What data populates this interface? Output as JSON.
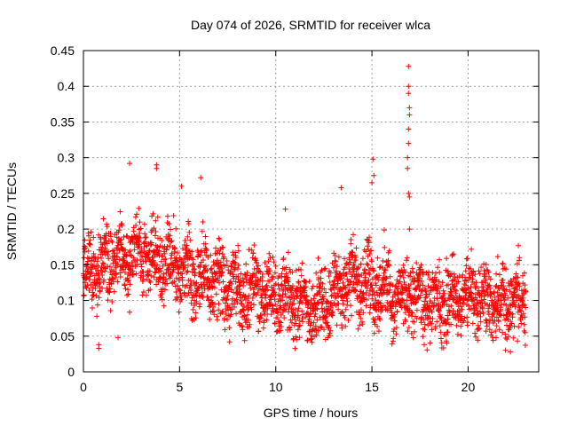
{
  "chart_data": {
    "type": "scatter",
    "title": "Day 074 of 2026, SRMTID for receiver wlca",
    "xlabel": "GPS time / hours",
    "ylabel": "SRMTID / TECUs",
    "xlim": [
      0,
      23.67
    ],
    "ylim": [
      0,
      0.45
    ],
    "x_ticks": [
      0,
      5,
      10,
      15,
      20
    ],
    "y_ticks": [
      0,
      0.05,
      0.1,
      0.15,
      0.2,
      0.25,
      0.3,
      0.35,
      0.4,
      0.45
    ],
    "x_tick_labels": [
      "0",
      "5",
      "10",
      "15",
      "20"
    ],
    "y_tick_labels": [
      "0",
      "0.05",
      "0.1",
      "0.15",
      "0.2",
      "0.25",
      "0.3",
      "0.35",
      "0.4",
      "0.45"
    ],
    "grid": true,
    "marker": "+",
    "marker_color": "#ff0000",
    "data_range": [
      0,
      23
    ],
    "notable_points": [
      {
        "x": 16.9,
        "y": 0.428
      },
      {
        "x": 16.9,
        "y": 0.4
      },
      {
        "x": 16.9,
        "y": 0.39
      },
      {
        "x": 16.95,
        "y": 0.37
      },
      {
        "x": 16.95,
        "y": 0.36
      },
      {
        "x": 16.9,
        "y": 0.34
      },
      {
        "x": 16.9,
        "y": 0.32
      },
      {
        "x": 16.85,
        "y": 0.3
      },
      {
        "x": 16.85,
        "y": 0.285
      },
      {
        "x": 16.9,
        "y": 0.25
      },
      {
        "x": 16.95,
        "y": 0.245
      },
      {
        "x": 16.95,
        "y": 0.2
      },
      {
        "x": 15.05,
        "y": 0.298
      },
      {
        "x": 15.1,
        "y": 0.275
      },
      {
        "x": 15.0,
        "y": 0.265
      },
      {
        "x": 2.4,
        "y": 0.292
      },
      {
        "x": 3.8,
        "y": 0.29
      },
      {
        "x": 3.8,
        "y": 0.285
      },
      {
        "x": 6.1,
        "y": 0.272
      },
      {
        "x": 13.4,
        "y": 0.258
      },
      {
        "x": 5.1,
        "y": 0.26
      },
      {
        "x": 10.5,
        "y": 0.228
      },
      {
        "x": 0.8,
        "y": 0.038
      },
      {
        "x": 0.8,
        "y": 0.033
      },
      {
        "x": 1.8,
        "y": 0.048
      },
      {
        "x": 22.2,
        "y": 0.028
      },
      {
        "x": 7.6,
        "y": 0.042
      },
      {
        "x": 16.1,
        "y": 0.043
      }
    ],
    "trend": [
      {
        "x": 0,
        "y": 0.13
      },
      {
        "x": 1,
        "y": 0.15
      },
      {
        "x": 2,
        "y": 0.16
      },
      {
        "x": 3,
        "y": 0.165
      },
      {
        "x": 4,
        "y": 0.155
      },
      {
        "x": 5,
        "y": 0.145
      },
      {
        "x": 6,
        "y": 0.135
      },
      {
        "x": 7,
        "y": 0.125
      },
      {
        "x": 8,
        "y": 0.115
      },
      {
        "x": 9,
        "y": 0.115
      },
      {
        "x": 10,
        "y": 0.105
      },
      {
        "x": 11,
        "y": 0.1
      },
      {
        "x": 12,
        "y": 0.09
      },
      {
        "x": 13,
        "y": 0.11
      },
      {
        "x": 14,
        "y": 0.13
      },
      {
        "x": 15,
        "y": 0.12
      },
      {
        "x": 16,
        "y": 0.11
      },
      {
        "x": 17,
        "y": 0.105
      },
      {
        "x": 18,
        "y": 0.095
      },
      {
        "x": 19,
        "y": 0.1
      },
      {
        "x": 20,
        "y": 0.105
      },
      {
        "x": 21,
        "y": 0.095
      },
      {
        "x": 22,
        "y": 0.09
      },
      {
        "x": 23,
        "y": 0.1
      }
    ]
  }
}
